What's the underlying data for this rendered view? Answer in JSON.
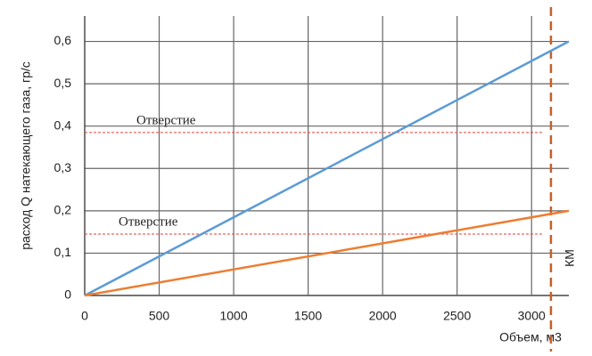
{
  "chart_data": {
    "type": "line",
    "y_label": "расход  Q натекающего газа, гр/с",
    "x_label": "Объем, м3",
    "x": [
      0,
      3250
    ],
    "series": [
      {
        "color": "#5b9bd5",
        "values": [
          0,
          0.6
        ]
      },
      {
        "color": "#ed7d31",
        "values": [
          0,
          0.2
        ]
      }
    ],
    "xlim": [
      0,
      3250
    ],
    "xticks": [
      0,
      500,
      1000,
      1500,
      2000,
      2500,
      3000
    ],
    "ylim": [
      0,
      0.66
    ],
    "yticks": [
      0,
      {
        "value": 0.1,
        "label": "0,1"
      },
      {
        "value": 0.2,
        "label": "0,2"
      },
      {
        "value": 0.3,
        "label": "0,3"
      },
      {
        "value": 0.4,
        "label": "0,4"
      },
      {
        "value": 0.5,
        "label": "0,5"
      },
      {
        "value": 0.6,
        "label": "0,6"
      }
    ],
    "grid": true,
    "hlines": [
      {
        "value": 0.385,
        "label": "Отверстие",
        "color": "#e0403a"
      },
      {
        "value": 0.145,
        "label": "Отверстие",
        "color": "#e0403a"
      }
    ],
    "vlines": [
      {
        "value": 3130,
        "label": "КМ",
        "color": "#c0622b"
      }
    ]
  }
}
